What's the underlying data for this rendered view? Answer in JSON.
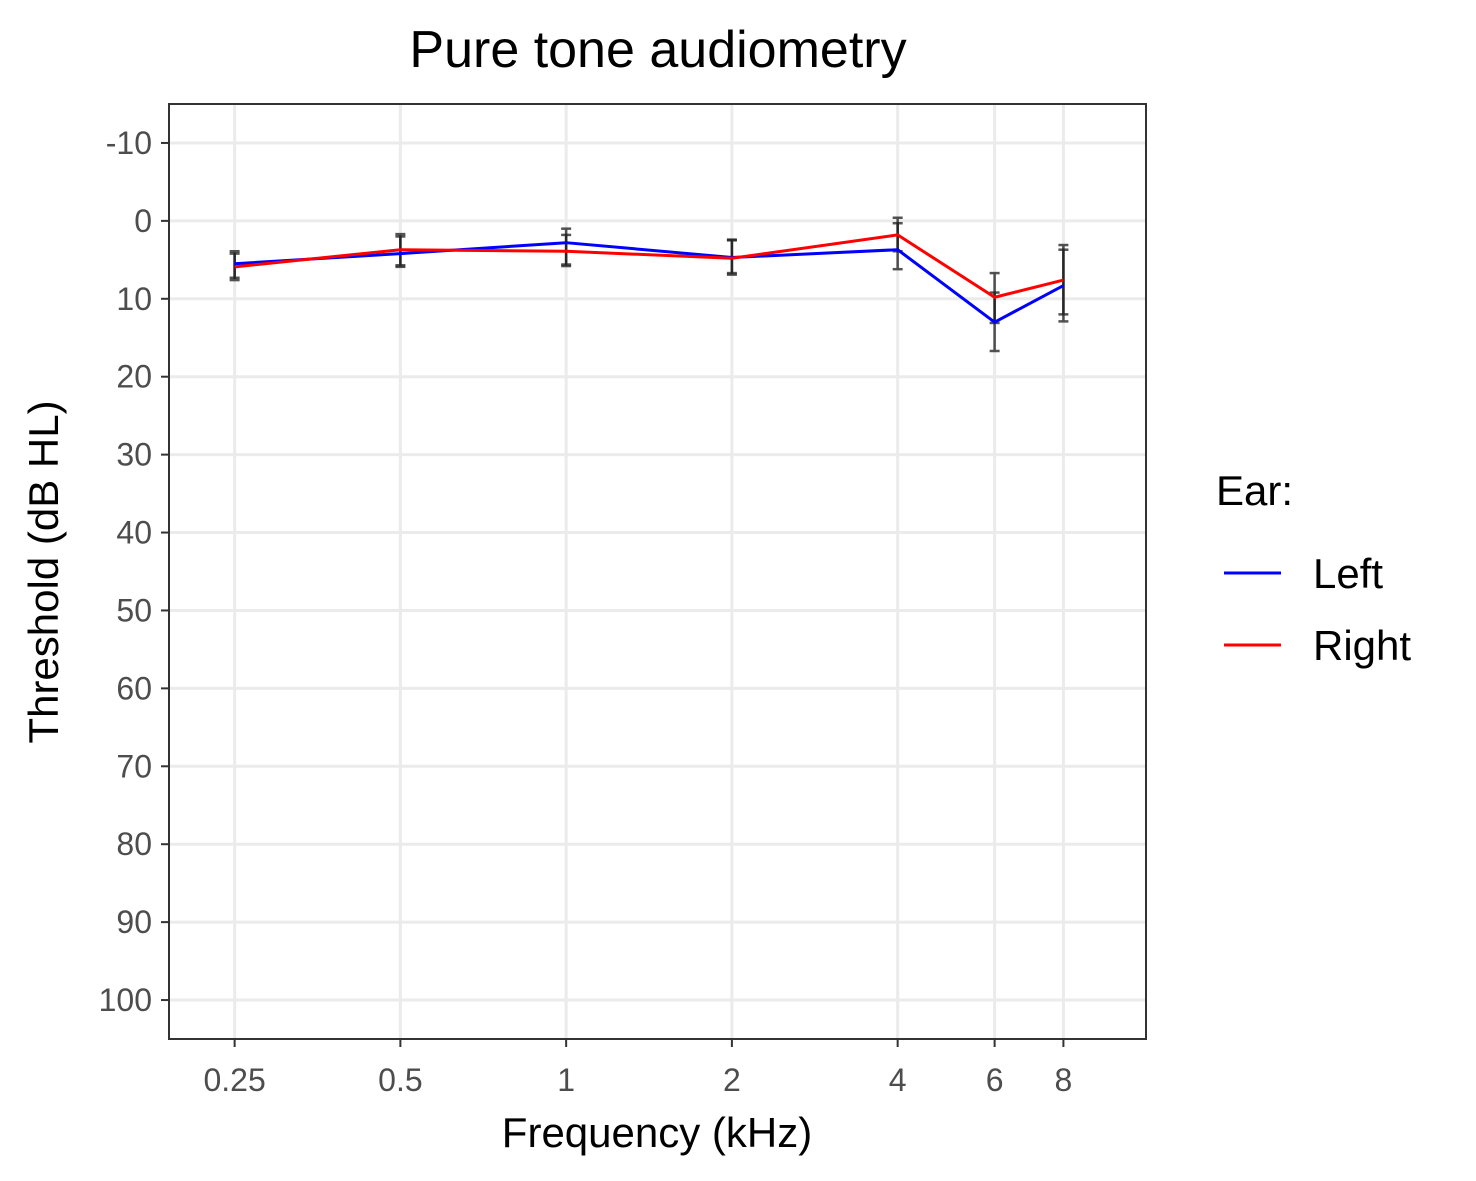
{
  "chart_data": {
    "type": "line",
    "title": "Pure tone audiometry",
    "xlabel": "Frequency (kHz)",
    "ylabel": "Threshold (dB HL)",
    "x_scale": "log",
    "y_reversed": true,
    "x": [
      0.25,
      0.5,
      1,
      2,
      4,
      6,
      8
    ],
    "x_tick_labels": [
      "0.25",
      "0.5",
      "1",
      "2",
      "4",
      "6",
      "8"
    ],
    "y_ticks": [
      -10,
      0,
      10,
      20,
      30,
      40,
      50,
      60,
      70,
      80,
      90,
      100
    ],
    "y_tick_labels": [
      "-10",
      "0",
      "10",
      "20",
      "30",
      "40",
      "50",
      "60",
      "70",
      "80",
      "90",
      "100"
    ],
    "ylim": [
      -15,
      105
    ],
    "grid": true,
    "legend": {
      "title": "Ear:",
      "position": "right"
    },
    "series": [
      {
        "name": "Left",
        "color": "#0000ff",
        "values": [
          5.5,
          4.2,
          2.8,
          4.7,
          3.7,
          13.0,
          8.3
        ],
        "error_low": [
          3.9,
          2.0,
          1.0,
          2.4,
          0.3,
          9.2,
          3.7
        ],
        "error_high": [
          7.3,
          5.9,
          5.6,
          6.9,
          6.2,
          16.7,
          12.9
        ]
      },
      {
        "name": "Right",
        "color": "#ff0000",
        "values": [
          5.9,
          3.7,
          3.9,
          4.8,
          1.8,
          9.8,
          7.6
        ],
        "error_low": [
          4.2,
          1.7,
          1.8,
          2.5,
          -0.4,
          6.7,
          3.1
        ],
        "error_high": [
          7.6,
          5.7,
          5.8,
          6.7,
          3.9,
          13.1,
          12.0
        ]
      }
    ]
  }
}
